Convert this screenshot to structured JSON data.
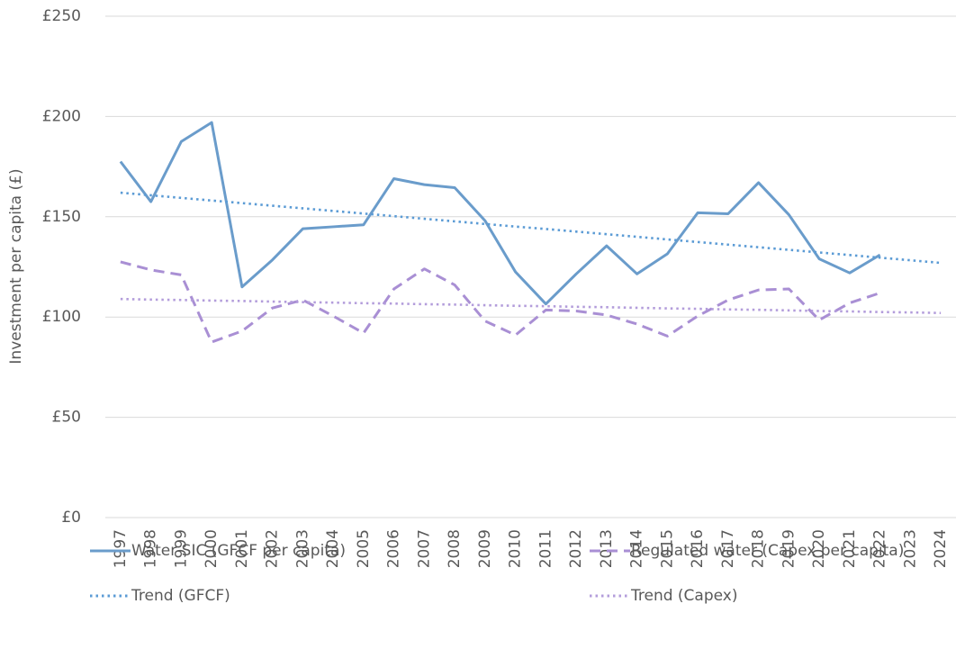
{
  "chart_data": {
    "type": "line",
    "y_axis_label": "Investment per capita (£)",
    "categories": [
      "1997",
      "1998",
      "1999",
      "2000",
      "2001",
      "2002",
      "2003",
      "2004",
      "2005",
      "2006",
      "2007",
      "2008",
      "2009",
      "2010",
      "2011",
      "2012",
      "2013",
      "2014",
      "2015",
      "2016",
      "2017",
      "2018",
      "2019",
      "2020",
      "2021",
      "2022",
      "2023",
      "2024"
    ],
    "series": [
      {
        "name": "Water SIC (GFCF per capita)",
        "color": "#6a9ccb",
        "line_style": "solid",
        "values": [
          177.5,
          157.5,
          187.5,
          197,
          115,
          128.5,
          144,
          145,
          146,
          169,
          166,
          164.5,
          148,
          122.5,
          106.5,
          121.5,
          135.5,
          121.5,
          131.5,
          152,
          151.5,
          167,
          151,
          129,
          122,
          131,
          null,
          null
        ]
      },
      {
        "name": "Regulated water (Capex per capita)",
        "color": "#a98fd4",
        "line_style": "dashed",
        "values": [
          127.5,
          123.5,
          121,
          87.5,
          93,
          104.5,
          108.5,
          100.5,
          92,
          114,
          124,
          116,
          98,
          91,
          103.5,
          103,
          101,
          96.5,
          90.5,
          100.5,
          108.5,
          113.5,
          114,
          98.5,
          107,
          112,
          null,
          null
        ]
      },
      {
        "name": "Trend (GFCF)",
        "color": "#5b9bd5",
        "line_style": "dotted",
        "values": [
          162,
          160.7,
          159.4,
          158.1,
          156.8,
          155.5,
          154.2,
          152.9,
          151.6,
          150.3,
          149.0,
          147.7,
          146.4,
          145.1,
          143.9,
          142.6,
          141.3,
          140.0,
          138.7,
          137.4,
          136.1,
          134.8,
          133.5,
          132.2,
          130.9,
          129.6,
          128.3,
          127.0
        ]
      },
      {
        "name": "Trend (Capex)",
        "color": "#b39ddb",
        "line_style": "dotted",
        "values": [
          109,
          108.7,
          108.5,
          108.2,
          108.0,
          107.7,
          107.4,
          107.2,
          106.9,
          106.7,
          106.4,
          106.2,
          105.9,
          105.6,
          105.4,
          105.1,
          104.9,
          104.6,
          104.3,
          104.1,
          103.8,
          103.6,
          103.3,
          103.0,
          102.8,
          102.5,
          102.3,
          102.0
        ]
      }
    ],
    "ylim": [
      0,
      250
    ],
    "yticks": [
      {
        "value": 0,
        "label": "£0"
      },
      {
        "value": 50,
        "label": "£50"
      },
      {
        "value": 100,
        "label": "£100"
      },
      {
        "value": 150,
        "label": "£150"
      },
      {
        "value": 200,
        "label": "£200"
      },
      {
        "value": 250,
        "label": "£250"
      }
    ],
    "grid": true,
    "legend": "bottom"
  }
}
